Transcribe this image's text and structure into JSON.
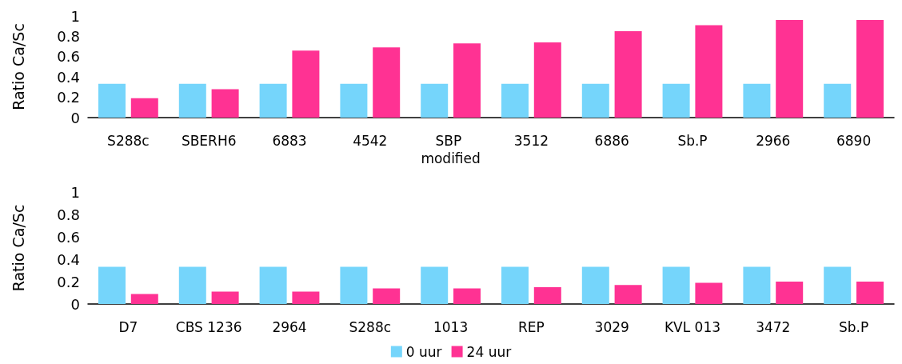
{
  "chart_data": [
    {
      "type": "bar",
      "ylabel": "Ratio Ca/Sc",
      "categories": [
        "S288c",
        "SBERH6",
        "6883",
        "4542",
        "SBP modified",
        "3512",
        "6886",
        "Sb.P",
        "2966",
        "6890"
      ],
      "series": [
        {
          "color": "#75d5fb",
          "values": [
            0.333,
            0.333,
            0.333,
            0.333,
            0.333,
            0.333,
            0.333,
            0.333,
            0.333,
            0.333
          ]
        },
        {
          "color": "#ff3293",
          "values": [
            0.19,
            0.28,
            0.66,
            0.69,
            0.73,
            0.74,
            0.85,
            0.91,
            0.96,
            0.96
          ]
        }
      ],
      "ylim": [
        0,
        1
      ],
      "yticks": [
        0,
        0.2,
        0.4,
        0.6,
        0.8,
        1
      ],
      "grid": false,
      "legend": false
    },
    {
      "type": "bar",
      "ylabel": "Ratio Ca/Sc",
      "categories": [
        "D7",
        "CBS 1236",
        "2964",
        "S288c",
        "1013",
        "REP",
        "3029",
        "KVL 013",
        "3472",
        "Sb.P"
      ],
      "series": [
        {
          "name": "0 uur",
          "color": "#75d5fb",
          "values": [
            0.333,
            0.333,
            0.333,
            0.333,
            0.333,
            0.333,
            0.333,
            0.333,
            0.333,
            0.333
          ]
        },
        {
          "name": "24 uur",
          "color": "#ff3293",
          "values": [
            0.09,
            0.11,
            0.11,
            0.14,
            0.14,
            0.15,
            0.17,
            0.19,
            0.2,
            0.2
          ]
        }
      ],
      "ylim": [
        0,
        1
      ],
      "yticks": [
        0,
        0.2,
        0.4,
        0.6,
        0.8,
        1
      ],
      "grid": false,
      "legend": "bottom"
    }
  ]
}
